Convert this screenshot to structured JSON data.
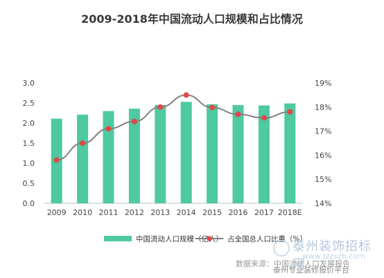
{
  "chart_data": {
    "type": "bar",
    "title": "2009-2018年中国流动人口规模和占比情况",
    "categories": [
      "2009",
      "2010",
      "2011",
      "2012",
      "2013",
      "2014",
      "2015",
      "2016",
      "2017",
      "2018E"
    ],
    "series": [
      {
        "name": "中国流动人口规模（亿人）",
        "type": "bar",
        "axis": "left",
        "color": "#4ec9a0",
        "values": [
          2.11,
          2.21,
          2.3,
          2.36,
          2.45,
          2.53,
          2.47,
          2.45,
          2.44,
          2.49
        ]
      },
      {
        "name": "占全国总人口比重（%）",
        "type": "line",
        "axis": "right",
        "color": "#808080",
        "marker_color": "#e04848",
        "values": [
          15.8,
          16.5,
          17.1,
          17.4,
          18.0,
          18.5,
          17.98,
          17.7,
          17.55,
          17.8
        ]
      }
    ],
    "y_left": {
      "ylim": [
        0,
        3.0
      ],
      "ticks": [
        "0.0",
        "0.5",
        "1.0",
        "1.5",
        "2.0",
        "2.5",
        "3.0"
      ]
    },
    "y_right": {
      "ylim": [
        14,
        19
      ],
      "ticks": [
        "14%",
        "15%",
        "16%",
        "17%",
        "18%",
        "19%"
      ]
    },
    "grid": false,
    "legend_position": "bottom"
  },
  "footer": {
    "source": "数据来源：中国流动人口发展报告"
  },
  "watermark": {
    "text": "泰州装饰招标网",
    "url": "www.tzzszb.com",
    "sub": "泰州专业装修报价平台"
  }
}
